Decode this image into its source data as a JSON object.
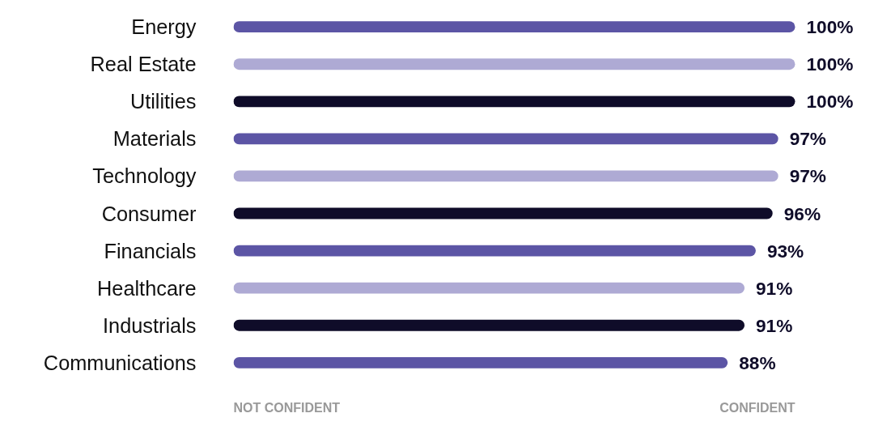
{
  "chart_data": {
    "type": "bar",
    "orientation": "horizontal",
    "categories": [
      "Energy",
      "Real Estate",
      "Utilities",
      "Materials",
      "Technology",
      "Consumer",
      "Financials",
      "Healthcare",
      "Industrials",
      "Communications"
    ],
    "series": [
      {
        "colors": [
          "#5c55a5",
          "#aeaad4",
          "#0f0c29",
          "#5c55a5",
          "#aeaad4",
          "#0f0c29",
          "#5c55a5",
          "#aeaad4",
          "#0f0c29",
          "#5c55a5"
        ],
        "values": [
          100,
          100,
          100,
          97,
          97,
          96,
          93,
          91,
          91,
          88
        ],
        "value_labels": [
          "100%",
          "100%",
          "100%",
          "97%",
          "97%",
          "96%",
          "93%",
          "91%",
          "91%",
          "88%"
        ]
      }
    ],
    "tick_labels": "y",
    "annotations": [
      "NOT CONFIDENT",
      "CONFIDENT"
    ]
  }
}
